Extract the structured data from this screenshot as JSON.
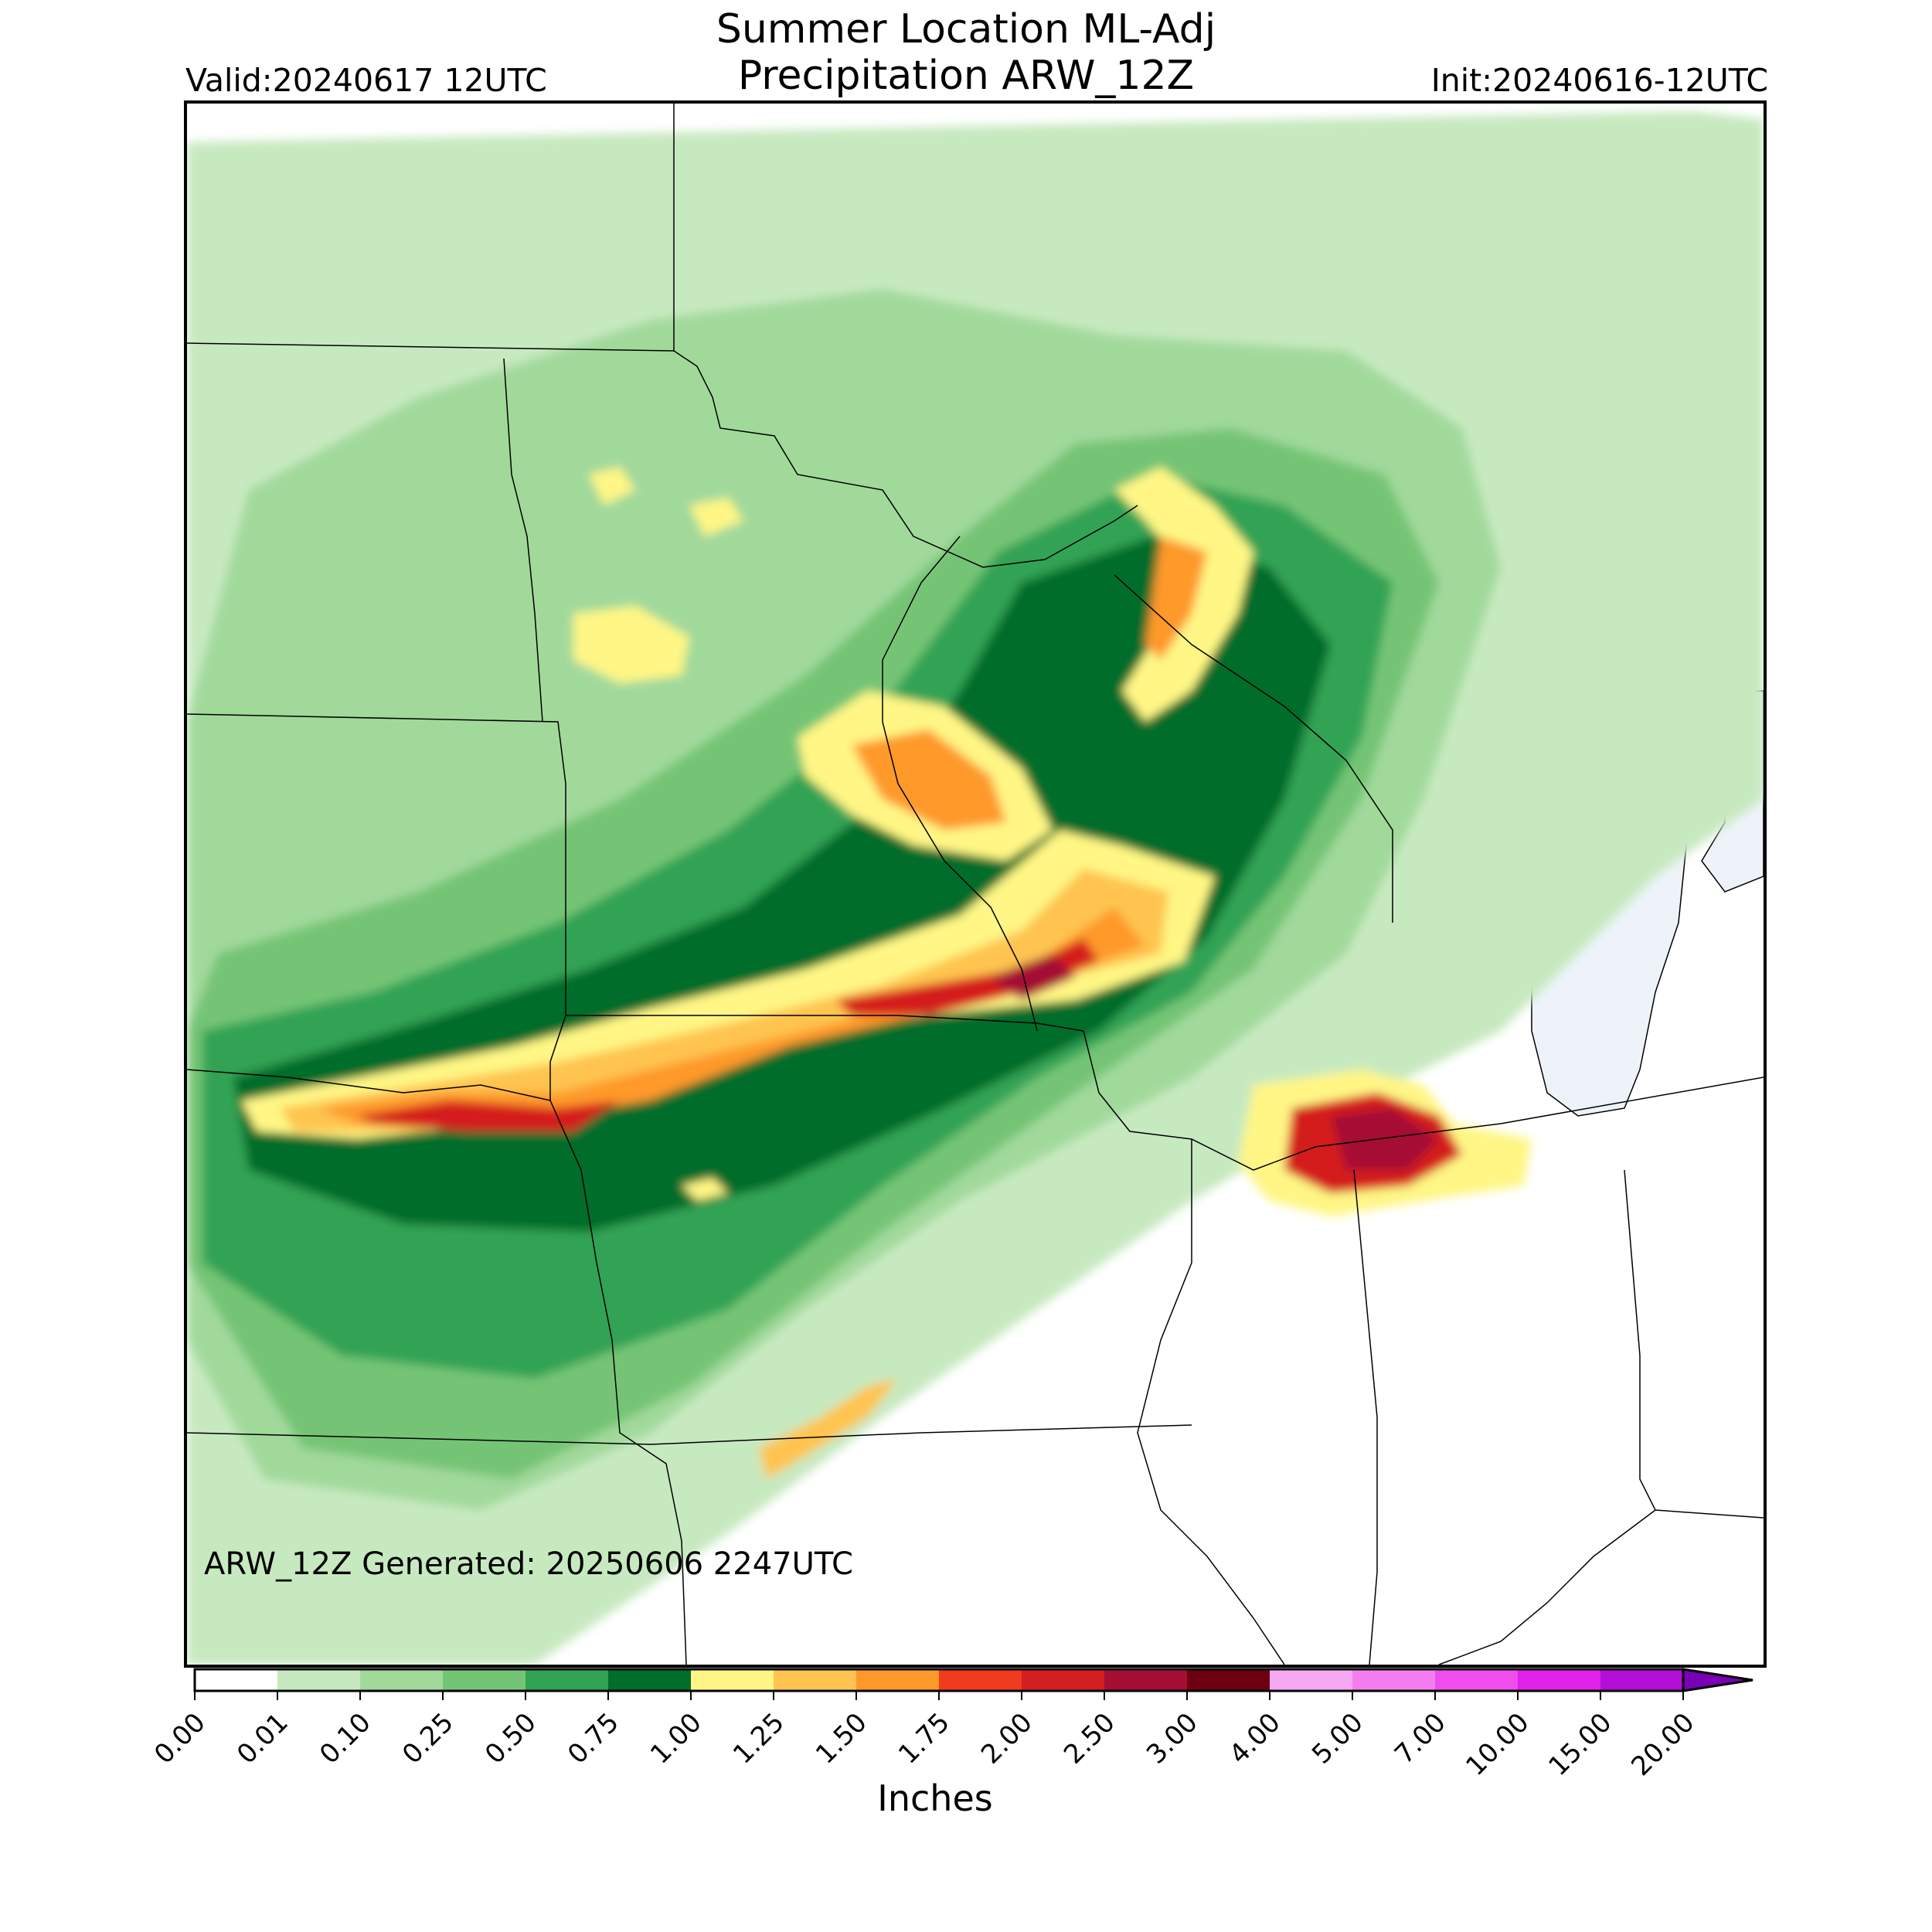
{
  "title_line1": "Summer Location ML-Adj",
  "title_line2": "Precipitation ARW_12Z",
  "valid_text": "Valid:20240617 12UTC",
  "init_text": "Init:20240616-12UTC",
  "generated_text": "ARW_12Z Generated: 20250606 2247UTC",
  "units_label": "Inches",
  "colorbar": {
    "ticks": [
      "0.00",
      "0.01",
      "0.10",
      "0.25",
      "0.50",
      "0.75",
      "1.00",
      "1.25",
      "1.50",
      "1.75",
      "2.00",
      "2.50",
      "3.00",
      "4.00",
      "5.00",
      "7.00",
      "10.00",
      "15.00",
      "20.00"
    ],
    "colors": [
      "#ffffff",
      "#c7e9c0",
      "#a1d99b",
      "#74c476",
      "#31a354",
      "#006d2c",
      "#fff685",
      "#fec44f",
      "#fe9929",
      "#f03b20",
      "#d41f1f",
      "#a50f35",
      "#6b0010",
      "#f7a8f2",
      "#f47ef0",
      "#ef4ded",
      "#e022ea",
      "#b40fd6"
    ],
    "extend_color": "#7a00b5"
  },
  "map_colors": {
    "land": "#ffffff",
    "water": "#eef3f9",
    "boundary": "#000000"
  }
}
